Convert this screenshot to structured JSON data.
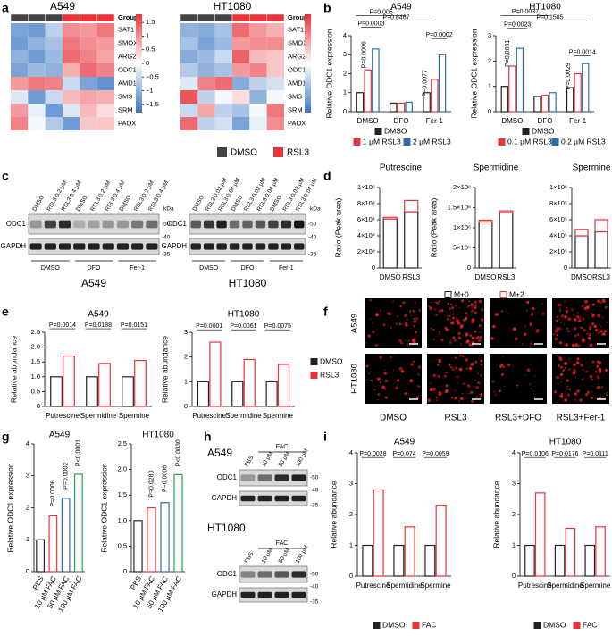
{
  "panel_labels": [
    "a",
    "b",
    "c",
    "d",
    "e",
    "f",
    "g",
    "h",
    "i"
  ],
  "heatmap_legend": [
    {
      "name": "DMSO",
      "color": "#444444"
    },
    {
      "name": "RSL3",
      "color": "#e8333a"
    }
  ],
  "chart_data": [
    {
      "type": "heatmap",
      "title": "A549",
      "group_label": "Group",
      "rows": [
        "SAT1",
        "SMOX",
        "ARG2",
        "ODC1",
        "AMD1",
        "SMS",
        "SRM",
        "PAOX"
      ],
      "values": [
        [
          -1.2,
          -1.3,
          -0.6,
          1.0,
          0.9,
          1.2
        ],
        [
          -1.3,
          -1.0,
          -0.8,
          1.2,
          1.0,
          0.9
        ],
        [
          -1.0,
          -1.3,
          -0.9,
          1.3,
          1.1,
          0.8
        ],
        [
          -1.2,
          -0.9,
          -1.0,
          0.7,
          1.3,
          1.1
        ],
        [
          0.9,
          1.2,
          1.1,
          -0.5,
          -1.2,
          -1.4
        ],
        [
          -0.3,
          -1.3,
          -0.5,
          0.6,
          0.8,
          0.7
        ],
        [
          0.9,
          -0.2,
          -1.3,
          -0.3,
          0.6,
          0.3
        ],
        [
          1.1,
          -0.1,
          -0.7,
          -1.3,
          0.5,
          0.5
        ]
      ],
      "clim": [
        -1.8,
        1.8
      ],
      "colors": [
        "#3b75c4",
        "#ffffff",
        "#e8333a"
      ],
      "colorbar_ticks": [
        1.5,
        1,
        0.5,
        0,
        {
          "value": -0.5,
          "label": "−0.5"
        },
        {
          "value": -1,
          "label": "−1"
        },
        {
          "value": -1.5,
          "label": "−1.5"
        }
      ]
    },
    {
      "type": "heatmap",
      "title": "HT1080",
      "group_label": "Group",
      "rows": [
        "SAT1",
        "SMOX",
        "ARG2",
        "ODC1",
        "AMD1",
        "SMS",
        "SRM",
        "PAOX"
      ],
      "values": [
        [
          -1.0,
          -1.1,
          -0.8,
          1.3,
          0.9,
          0.7
        ],
        [
          -0.8,
          -1.2,
          -0.9,
          0.9,
          1.0,
          1.0
        ],
        [
          -1.1,
          -0.9,
          -0.5,
          1.4,
          0.6,
          0.5
        ],
        [
          -0.7,
          -1.0,
          -0.8,
          0.9,
          1.1,
          0.5
        ],
        [
          -0.3,
          1.1,
          1.3,
          -1.1,
          -0.6,
          -0.4
        ],
        [
          1.5,
          -0.6,
          -0.1,
          0.3,
          -1.0,
          -0.1
        ],
        [
          -0.5,
          0.8,
          -0.6,
          -0.8,
          -0.1,
          1.2
        ],
        [
          1.3,
          -0.6,
          -0.4,
          -1.2,
          -0.2,
          1.0
        ]
      ],
      "clim": [
        -1.8,
        1.8
      ],
      "colors": [
        "#3b75c4",
        "#ffffff",
        "#e8333a"
      ]
    },
    {
      "type": "bar",
      "title": "A549",
      "categories": [
        "DMSO",
        "DFO",
        "Fer-1"
      ],
      "series": [
        {
          "name": "DMSO",
          "color": "#222222",
          "values": [
            1,
            0.45,
            1
          ]
        },
        {
          "name": "1 µM RSL3",
          "color": "#e8333a",
          "values": [
            2.2,
            0.45,
            1.7
          ]
        },
        {
          "name": "2 µM RSL3",
          "color": "#2b6cb0",
          "values": [
            3.3,
            0.5,
            3.0
          ]
        }
      ],
      "ylim": [
        0,
        4
      ],
      "yticks": [
        0,
        1,
        2,
        3,
        4
      ],
      "ylabel": "Relative ODC1 expression",
      "annotations": [
        "P=0.005",
        "P=0.8467",
        "P=0.0003",
        "P=0.0006",
        "P=0.0077",
        "P=0.0002"
      ]
    },
    {
      "type": "bar",
      "title": "HT1080",
      "categories": [
        "DMSO",
        "DFO",
        "Fer-1"
      ],
      "series": [
        {
          "name": "DMSO",
          "color": "#222222",
          "values": [
            1,
            0.6,
            0.95
          ]
        },
        {
          "name": "0.1 µM RSL3",
          "color": "#e8333a",
          "values": [
            1.8,
            0.65,
            1.5
          ]
        },
        {
          "name": "0.2 µM RSL3",
          "color": "#2b6cb0",
          "values": [
            2.5,
            0.75,
            1.9
          ]
        }
      ],
      "ylim": [
        0,
        3
      ],
      "yticks": [
        0,
        1,
        2,
        3
      ],
      "ylabel": "Relative ODC1 expression",
      "annotations": [
        "P=0.0037",
        "P=0.1585",
        "P=0.0023",
        "P=0.0001",
        "P=0.0029",
        "P=0.0014"
      ]
    },
    {
      "type": "stacked_bar",
      "title": "Putrescine",
      "categories": [
        "DMSO",
        "RSL3"
      ],
      "series": [
        {
          "color": "#222222",
          "values": [
            61000,
            70000
          ]
        },
        {
          "color": "#e8333a",
          "values": [
            2000,
            14000
          ]
        }
      ],
      "ylim": [
        0,
        100000
      ],
      "yticks": [
        0,
        {
          "value": 20000,
          "label": "2×10⁴"
        },
        {
          "value": 40000,
          "label": "4×10⁴"
        },
        {
          "value": 60000,
          "label": "6×10⁴"
        },
        {
          "value": 80000,
          "label": "8×10⁴"
        },
        {
          "value": 100000,
          "label": "1×10⁵"
        }
      ],
      "ylabel": "Ratio (Peak area)"
    },
    {
      "type": "stacked_bar",
      "title": "Spermidine",
      "categories": [
        "DMSO",
        "RSL3"
      ],
      "series": [
        {
          "name": "M+0",
          "color": "#222222",
          "values": [
            1150000,
            1380000
          ]
        },
        {
          "name": "M+2",
          "color": "#e8333a",
          "values": [
            40000,
            40000
          ]
        }
      ],
      "ylim": [
        0,
        2000000
      ],
      "yticks": [
        0,
        {
          "value": 500000,
          "label": "5×10⁵"
        },
        {
          "value": 1000000,
          "label": "1×10⁶"
        },
        {
          "value": 1500000,
          "label": "1.5×10⁶"
        },
        {
          "value": 2000000,
          "label": "2×10⁶"
        }
      ],
      "ylabel": "Ratio (Peak area)"
    },
    {
      "type": "stacked_bar",
      "title": "Spermine",
      "categories": [
        "DMSO",
        "RSL3"
      ],
      "series": [
        {
          "color": "#222222",
          "values": [
            400000,
            450000
          ]
        },
        {
          "color": "#e8333a",
          "values": [
            80000,
            150000
          ]
        }
      ],
      "ylim": [
        0,
        1000000
      ],
      "yticks": [
        0,
        {
          "value": 200000,
          "label": "2×10⁵"
        },
        {
          "value": 400000,
          "label": "4×10⁵"
        },
        {
          "value": 600000,
          "label": "6×10⁵"
        },
        {
          "value": 800000,
          "label": "8×10⁵"
        },
        {
          "value": 1000000,
          "label": "1×10⁶"
        }
      ]
    },
    {
      "type": "bar",
      "title": "A549",
      "categories": [
        "Putrescine",
        "Spermidine",
        "Spermine"
      ],
      "series": [
        {
          "color": "#222222",
          "values": [
            1,
            1,
            1
          ]
        },
        {
          "color": "#e8333a",
          "values": [
            1.7,
            1.45,
            1.55
          ]
        }
      ],
      "ylim": [
        0,
        2.5
      ],
      "yticks": [
        0,
        0.5,
        {
          "value": 1,
          "label": "1.0"
        },
        1.5,
        {
          "value": 2,
          "label": "2.0"
        },
        2.5
      ],
      "ylabel": "Relative abundance",
      "annotations": [
        "P=0.0014",
        "P=0.0188",
        "P=0.0151"
      ]
    },
    {
      "type": "bar",
      "title": "HT1080",
      "categories": [
        "Putrescine",
        "Spermidine",
        "Spermine"
      ],
      "series": [
        {
          "name": "DMSO",
          "color": "#222222",
          "values": [
            1,
            1,
            1
          ]
        },
        {
          "name": "RSL3",
          "color": "#e8333a",
          "values": [
            2.6,
            1.9,
            1.7
          ]
        }
      ],
      "ylim": [
        0,
        3
      ],
      "yticks": [
        0,
        1,
        2,
        3
      ],
      "ylabel": "Relative abundance",
      "annotations": [
        "P=0.0001",
        "P=0.0061",
        "P=0.0075"
      ]
    },
    {
      "type": "bar",
      "title": "A549",
      "categories": [
        "PBS",
        "10 µM FAC",
        "50 µM FAC",
        "100 µM FAC"
      ],
      "values": [
        1,
        1.75,
        2.3,
        3.05
      ],
      "colors": [
        "#222222",
        "#e8333a",
        "#2b6cb0",
        "#2e9e4f"
      ],
      "ylim": [
        0,
        4
      ],
      "yticks": [
        0,
        1,
        2,
        3,
        4
      ],
      "ylabel": "Relative ODC1 expression",
      "annotations": [
        "P=0.0008",
        "P=0.0002",
        "P<0.0001"
      ]
    },
    {
      "type": "bar",
      "title": "HT1080",
      "categories": [
        "PBS",
        "10 µM FAC",
        "50 µM FAC",
        "100 µM FAC"
      ],
      "values": [
        1,
        1.25,
        1.35,
        1.9
      ],
      "colors": [
        "#222222",
        "#e8333a",
        "#2b6cb0",
        "#2e9e4f"
      ],
      "ylim": [
        0,
        2.5
      ],
      "yticks": [
        0,
        0.5,
        {
          "value": 1,
          "label": "1.0"
        },
        1.5,
        {
          "value": 2,
          "label": "2.0"
        },
        2.5
      ],
      "ylabel": "Relative ODC1 expression",
      "annotations": [
        "P=0.0280",
        "P=0.0006",
        "P<0.0030"
      ]
    },
    {
      "type": "bar",
      "title": "A549",
      "categories": [
        "Putrescine",
        "Spermidine",
        "Spermine"
      ],
      "series": [
        {
          "name": "DMSO",
          "color": "#222222",
          "values": [
            1,
            1,
            1
          ]
        },
        {
          "name": "FAC",
          "color": "#e8333a",
          "values": [
            2.8,
            1.6,
            2.3
          ]
        }
      ],
      "ylim": [
        0,
        4
      ],
      "yticks": [
        0,
        1,
        2,
        3,
        4
      ],
      "ylabel": "Relative abundance",
      "annotations": [
        "P=0.0028",
        "P=0.074",
        "P=0.0059"
      ]
    },
    {
      "type": "bar",
      "title": "HT1080",
      "categories": [
        "Putrescine",
        "Spermidine",
        "Spermine"
      ],
      "series": [
        {
          "name": "DMSO",
          "color": "#222222",
          "values": [
            1,
            1,
            1
          ]
        },
        {
          "name": "FAC",
          "color": "#e8333a",
          "values": [
            2.7,
            1.55,
            1.6
          ]
        }
      ],
      "ylim": [
        0,
        4
      ],
      "yticks": [
        0,
        1,
        2,
        3,
        4
      ],
      "ylabel": "Relative abundance",
      "annotations": [
        "P=0.0106",
        "P=0.0176",
        "P=0.0111"
      ]
    }
  ],
  "blots": [
    {
      "title": "A549",
      "lanes": [
        "DMSO",
        "RSL3 0.2 µM",
        "RSL3 0.4 µM",
        "DMSO",
        "RSL3 0.2 µM",
        "RSL3 0.4 µM",
        "DMSO",
        "RSL3 0.2 µM",
        "RSL3 0.4 µM"
      ],
      "groups": [
        "DMSO",
        "DFO",
        "Fer-1"
      ],
      "proteins": [
        "ODC1",
        "GAPDH"
      ],
      "markers": [
        "-50",
        "-40",
        "-35"
      ],
      "unit": "kDa"
    },
    {
      "title": "HT1080",
      "lanes": [
        "DMSO",
        "RSL3 0.02 µM",
        "RSL3 0.04 µM",
        "DMSO",
        "RSL3 0.02 µM",
        "RSL3 0.04 µM",
        "DMSO",
        "RSL3 0.02 µM",
        "RSL3 0.04 µM"
      ],
      "groups": [
        "DMSO",
        "DFO",
        "Fer-1"
      ],
      "proteins": [
        "ODC1",
        "GAPDH"
      ],
      "markers": [
        "-50",
        "-40",
        "-35"
      ],
      "unit": "kDa"
    },
    {
      "title": "A549",
      "header": "FAC",
      "lanes": [
        "PBS",
        "10 µM",
        "50 µM",
        "100 µM"
      ],
      "proteins": [
        "ODC1",
        "GAPDH"
      ],
      "markers": [
        "-50",
        "-40",
        "-35"
      ]
    },
    {
      "title": "HT1080",
      "header": "FAC",
      "lanes": [
        "PBS",
        "10 µM",
        "50 µM",
        "100 µM"
      ],
      "proteins": [
        "ODC1",
        "GAPDH"
      ],
      "markers": [
        "-50",
        "-40",
        "-35"
      ]
    }
  ],
  "images": {
    "rows": [
      "A549",
      "HT1080"
    ],
    "columns": [
      "DMSO",
      "RSL3",
      "RSL3+DFO",
      "RSL3+Fer-1"
    ]
  }
}
